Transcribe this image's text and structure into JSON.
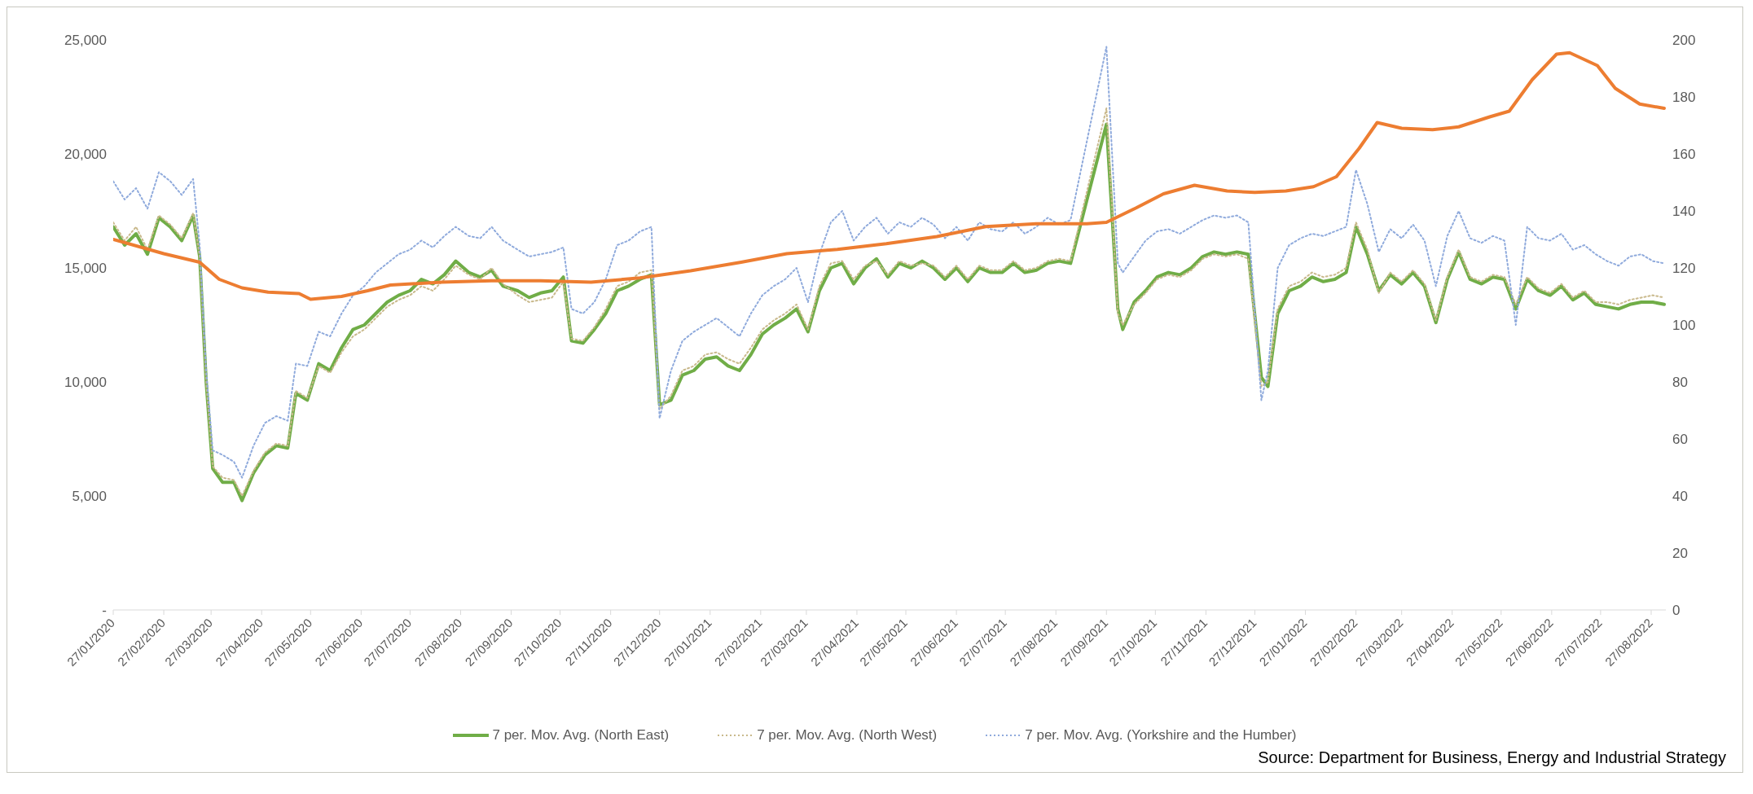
{
  "chart_data": {
    "type": "line",
    "x": [
      "2020-01-27",
      "2020-02-03",
      "2020-02-10",
      "2020-02-17",
      "2020-02-24",
      "2020-03-02",
      "2020-03-09",
      "2020-03-16",
      "2020-03-20",
      "2020-03-24",
      "2020-03-28",
      "2020-04-03",
      "2020-04-10",
      "2020-04-15",
      "2020-04-22",
      "2020-04-29",
      "2020-05-06",
      "2020-05-13",
      "2020-05-18",
      "2020-05-25",
      "2020-06-01",
      "2020-06-08",
      "2020-06-15",
      "2020-06-22",
      "2020-06-29",
      "2020-07-06",
      "2020-07-13",
      "2020-07-20",
      "2020-07-27",
      "2020-08-03",
      "2020-08-10",
      "2020-08-17",
      "2020-08-24",
      "2020-09-01",
      "2020-09-08",
      "2020-09-15",
      "2020-09-22",
      "2020-10-01",
      "2020-10-08",
      "2020-10-15",
      "2020-10-22",
      "2020-10-29",
      "2020-11-03",
      "2020-11-10",
      "2020-11-17",
      "2020-11-24",
      "2020-12-01",
      "2020-12-08",
      "2020-12-15",
      "2020-12-22",
      "2020-12-27",
      "2021-01-03",
      "2021-01-10",
      "2021-01-17",
      "2021-01-24",
      "2021-01-31",
      "2021-02-07",
      "2021-02-14",
      "2021-02-21",
      "2021-02-28",
      "2021-03-07",
      "2021-03-14",
      "2021-03-21",
      "2021-03-28",
      "2021-04-04",
      "2021-04-11",
      "2021-04-18",
      "2021-04-25",
      "2021-05-02",
      "2021-05-09",
      "2021-05-16",
      "2021-05-23",
      "2021-05-30",
      "2021-06-06",
      "2021-06-13",
      "2021-06-20",
      "2021-06-27",
      "2021-07-04",
      "2021-07-11",
      "2021-07-18",
      "2021-07-25",
      "2021-08-01",
      "2021-08-08",
      "2021-08-15",
      "2021-08-22",
      "2021-08-29",
      "2021-09-05",
      "2021-09-27",
      "2021-10-04",
      "2021-10-07",
      "2021-10-14",
      "2021-10-21",
      "2021-10-28",
      "2021-11-04",
      "2021-11-11",
      "2021-11-18",
      "2021-11-25",
      "2021-12-02",
      "2021-12-09",
      "2021-12-16",
      "2021-12-23",
      "2021-12-31",
      "2022-01-04",
      "2022-01-10",
      "2022-01-17",
      "2022-01-24",
      "2022-01-31",
      "2022-02-07",
      "2022-02-14",
      "2022-02-21",
      "2022-02-27",
      "2022-03-06",
      "2022-03-13",
      "2022-03-20",
      "2022-03-27",
      "2022-04-03",
      "2022-04-10",
      "2022-04-17",
      "2022-04-24",
      "2022-05-01",
      "2022-05-08",
      "2022-05-15",
      "2022-05-22",
      "2022-05-29",
      "2022-06-05",
      "2022-06-12",
      "2022-06-19",
      "2022-06-26",
      "2022-07-03",
      "2022-07-10",
      "2022-07-17",
      "2022-07-24",
      "2022-07-31",
      "2022-08-07",
      "2022-08-14",
      "2022-08-21",
      "2022-08-28",
      "2022-09-04"
    ],
    "series": [
      {
        "name": "7 per. Mov. Avg. (North East)",
        "color": "#70ad47",
        "line_style": "solid",
        "values": [
          16800,
          16000,
          16500,
          15600,
          17200,
          16800,
          16200,
          17300,
          15500,
          10000,
          6200,
          5600,
          5600,
          4800,
          6000,
          6800,
          7200,
          7100,
          9500,
          9200,
          10800,
          10500,
          11500,
          12300,
          12500,
          13000,
          13500,
          13800,
          14000,
          14500,
          14300,
          14700,
          15300,
          14800,
          14600,
          14900,
          14200,
          14000,
          13700,
          13900,
          14000,
          14600,
          11800,
          11700,
          12300,
          13000,
          14000,
          14200,
          14500,
          14700,
          9000,
          9200,
          10300,
          10500,
          11000,
          11100,
          10700,
          10500,
          11200,
          12100,
          12500,
          12800,
          13200,
          12200,
          14000,
          15000,
          15200,
          14300,
          15000,
          15400,
          14600,
          15200,
          15000,
          15300,
          15000,
          14500,
          15000,
          14400,
          15000,
          14800,
          14800,
          15200,
          14800,
          14900,
          15200,
          15300,
          15200,
          21300,
          13200,
          12300,
          13500,
          14000,
          14600,
          14800,
          14700,
          15000,
          15500,
          15700,
          15600,
          15700,
          15600,
          10200,
          9800,
          13000,
          14000,
          14200,
          14600,
          14400,
          14500,
          14800,
          16800,
          15600,
          14000,
          14700,
          14300,
          14800,
          14200,
          12600,
          14500,
          15700,
          14500,
          14300,
          14600,
          14500,
          13200,
          14500,
          14000,
          13800,
          14200,
          13600,
          13900,
          13400,
          13300,
          13200,
          13400,
          13500,
          13500,
          13400
        ]
      },
      {
        "name": "7 per. Mov. Avg. (North West)",
        "color": "#c9b98c",
        "line_style": "dotted",
        "values": [
          17000,
          16200,
          16800,
          15800,
          17300,
          16900,
          16300,
          17400,
          15500,
          10000,
          6300,
          5800,
          5700,
          5000,
          6100,
          6900,
          7300,
          7200,
          9600,
          9300,
          10700,
          10400,
          11300,
          12000,
          12300,
          12800,
          13300,
          13600,
          13800,
          14200,
          14000,
          14500,
          15100,
          14700,
          14500,
          15000,
          14300,
          13800,
          13500,
          13600,
          13700,
          14400,
          11900,
          11800,
          12400,
          13200,
          14200,
          14400,
          14800,
          14900,
          8800,
          9400,
          10500,
          10700,
          11200,
          11300,
          11000,
          10800,
          11500,
          12300,
          12700,
          13000,
          13400,
          12300,
          14200,
          15200,
          15300,
          14500,
          15100,
          15300,
          14700,
          15300,
          15100,
          15200,
          15100,
          14600,
          15100,
          14500,
          15100,
          14900,
          14900,
          15300,
          14900,
          15000,
          15300,
          15400,
          15300,
          22000,
          13000,
          12500,
          13400,
          13900,
          14500,
          14700,
          14600,
          14900,
          15400,
          15600,
          15500,
          15600,
          15400,
          9800,
          10000,
          13200,
          14200,
          14400,
          14800,
          14600,
          14700,
          15000,
          17000,
          15800,
          13900,
          14800,
          14400,
          14900,
          14300,
          12700,
          14600,
          15800,
          14600,
          14400,
          14700,
          14600,
          13400,
          14600,
          14100,
          13900,
          14300,
          13700,
          14000,
          13500,
          13500,
          13400,
          13600,
          13700,
          13800,
          13700
        ]
      },
      {
        "name": "7 per. Mov. Avg. (Yorkshire and the Humber)",
        "color": "#8faadc",
        "line_style": "dotted",
        "values": [
          18800,
          18000,
          18500,
          17600,
          19200,
          18800,
          18200,
          18900,
          16000,
          10500,
          7000,
          6800,
          6500,
          5800,
          7200,
          8200,
          8500,
          8300,
          10800,
          10700,
          12200,
          12000,
          13000,
          13800,
          14200,
          14800,
          15200,
          15600,
          15800,
          16200,
          15900,
          16400,
          16800,
          16400,
          16300,
          16800,
          16200,
          15800,
          15500,
          15600,
          15700,
          15900,
          13200,
          13000,
          13500,
          14500,
          16000,
          16200,
          16600,
          16800,
          8400,
          10500,
          11800,
          12200,
          12500,
          12800,
          12400,
          12000,
          13000,
          13800,
          14200,
          14500,
          15000,
          13500,
          15600,
          17000,
          17500,
          16200,
          16800,
          17200,
          16500,
          17000,
          16800,
          17200,
          16900,
          16300,
          16800,
          16200,
          17000,
          16700,
          16600,
          17000,
          16500,
          16800,
          17200,
          16900,
          17100,
          24700,
          15200,
          14800,
          15500,
          16200,
          16600,
          16700,
          16500,
          16800,
          17100,
          17300,
          17200,
          17300,
          17000,
          9200,
          10500,
          15000,
          16000,
          16300,
          16500,
          16400,
          16600,
          16800,
          19300,
          17800,
          15700,
          16700,
          16300,
          16900,
          16200,
          14200,
          16400,
          17500,
          16300,
          16100,
          16400,
          16200,
          12500,
          16800,
          16300,
          16200,
          16500,
          15800,
          16000,
          15600,
          15300,
          15100,
          15500,
          15600,
          15300,
          15200
        ]
      },
      {
        "color": "#ed7d31",
        "line_style": "solid",
        "axis": "y2",
        "x": [
          "2020-01-27",
          "2020-02-27",
          "2020-03-20",
          "2020-04-01",
          "2020-04-15",
          "2020-05-01",
          "2020-05-20",
          "2020-05-27",
          "2020-06-15",
          "2020-07-01",
          "2020-07-15",
          "2020-08-15",
          "2020-09-15",
          "2020-10-15",
          "2020-11-15",
          "2020-12-15",
          "2021-01-15",
          "2021-02-15",
          "2021-03-15",
          "2021-04-15",
          "2021-05-15",
          "2021-06-15",
          "2021-07-15",
          "2021-08-15",
          "2021-09-15",
          "2021-09-27",
          "2021-10-15",
          "2021-11-01",
          "2021-11-20",
          "2021-12-10",
          "2021-12-27",
          "2022-01-15",
          "2022-02-01",
          "2022-02-15",
          "2022-03-01",
          "2022-03-12",
          "2022-03-27",
          "2022-04-15",
          "2022-05-01",
          "2022-05-20",
          "2022-06-01",
          "2022-06-15",
          "2022-06-30",
          "2022-07-08",
          "2022-07-25",
          "2022-08-05",
          "2022-08-20",
          "2022-09-04"
        ],
        "values": [
          130,
          125,
          122,
          116,
          113,
          111.5,
          111,
          109,
          110,
          112,
          114,
          115,
          115.5,
          115.5,
          115,
          116.5,
          119,
          122,
          125,
          126.5,
          128.5,
          131,
          134.5,
          135.5,
          135.5,
          136,
          141,
          146,
          149,
          147,
          146.5,
          147,
          148.5,
          152,
          162,
          171,
          169,
          168.5,
          169.5,
          173,
          175,
          186,
          195,
          195.5,
          191,
          183,
          177.5,
          176
        ]
      }
    ],
    "xlim": [
      "2020-01-27",
      "2022-09-05"
    ],
    "xticks": [
      {
        "value": "2020-01-27",
        "label": "27/01/2020"
      },
      {
        "value": "2020-02-27",
        "label": "27/02/2020"
      },
      {
        "value": "2020-03-27",
        "label": "27/03/2020"
      },
      {
        "value": "2020-04-27",
        "label": "27/04/2020"
      },
      {
        "value": "2020-05-27",
        "label": "27/05/2020"
      },
      {
        "value": "2020-06-27",
        "label": "27/06/2020"
      },
      {
        "value": "2020-07-27",
        "label": "27/07/2020"
      },
      {
        "value": "2020-08-27",
        "label": "27/08/2020"
      },
      {
        "value": "2020-09-27",
        "label": "27/09/2020"
      },
      {
        "value": "2020-10-27",
        "label": "27/10/2020"
      },
      {
        "value": "2020-11-27",
        "label": "27/11/2020"
      },
      {
        "value": "2020-12-27",
        "label": "27/12/2020"
      },
      {
        "value": "2021-01-27",
        "label": "27/01/2021"
      },
      {
        "value": "2021-02-27",
        "label": "27/02/2021"
      },
      {
        "value": "2021-03-27",
        "label": "27/03/2021"
      },
      {
        "value": "2021-04-27",
        "label": "27/04/2021"
      },
      {
        "value": "2021-05-27",
        "label": "27/05/2021"
      },
      {
        "value": "2021-06-27",
        "label": "27/06/2021"
      },
      {
        "value": "2021-07-27",
        "label": "27/07/2021"
      },
      {
        "value": "2021-08-27",
        "label": "27/08/2021"
      },
      {
        "value": "2021-09-27",
        "label": "27/09/2021"
      },
      {
        "value": "2021-10-27",
        "label": "27/10/2021"
      },
      {
        "value": "2021-11-27",
        "label": "27/11/2021"
      },
      {
        "value": "2021-12-27",
        "label": "27/12/2021"
      },
      {
        "value": "2022-01-27",
        "label": "27/01/2022"
      },
      {
        "value": "2022-02-27",
        "label": "27/02/2022"
      },
      {
        "value": "2022-03-27",
        "label": "27/03/2022"
      },
      {
        "value": "2022-04-27",
        "label": "27/04/2022"
      },
      {
        "value": "2022-05-27",
        "label": "27/05/2022"
      },
      {
        "value": "2022-06-27",
        "label": "27/06/2022"
      },
      {
        "value": "2022-07-27",
        "label": "27/07/2022"
      },
      {
        "value": "2022-08-27",
        "label": "27/08/2022"
      }
    ],
    "ylim": [
      0,
      25000
    ],
    "yticks": [
      {
        "value": 0,
        "label": "-"
      },
      {
        "value": 5000,
        "label": "5,000"
      },
      {
        "value": 10000,
        "label": "10,000"
      },
      {
        "value": 15000,
        "label": "15,000"
      },
      {
        "value": 20000,
        "label": "20,000"
      },
      {
        "value": 25000,
        "label": "25,000"
      }
    ],
    "y2lim": [
      0,
      200
    ],
    "y2ticks": [
      0,
      20,
      40,
      60,
      80,
      100,
      120,
      140,
      160,
      180,
      200
    ],
    "grid": false,
    "marker": "none",
    "legend": "bottom",
    "annotations": [
      "Source: Department for Business, Energy and Industrial Strategy"
    ]
  }
}
